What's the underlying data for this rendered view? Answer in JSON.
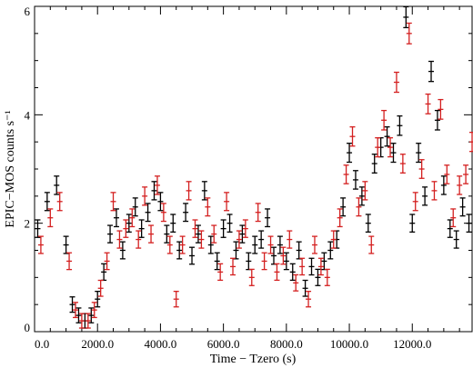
{
  "chart_data": {
    "type": "scatter",
    "title": "",
    "xlabel": "Time − Tzero (s)",
    "ylabel": "EPIC−MOS counts s⁻¹",
    "xlim": [
      0,
      13900
    ],
    "ylim": [
      0,
      6
    ],
    "grid": false,
    "legend": "none",
    "x_ticks": [
      0,
      2000,
      4000,
      6000,
      8000,
      10000,
      12000
    ],
    "x_tick_labels": [
      "0.0",
      "2000.0",
      "4000.0",
      "6000.0",
      "8000.0",
      "10000.0",
      "12000.0"
    ],
    "y_ticks": [
      0,
      2,
      4,
      6
    ],
    "y_tick_labels": [
      "0",
      "2",
      "4",
      "6"
    ],
    "series": [
      {
        "color": "#000000",
        "x": [
          100,
          400,
          700,
          1000,
          1200,
          1400,
          1600,
          1800,
          2000,
          2200,
          2400,
          2600,
          2800,
          3000,
          3200,
          3400,
          3600,
          3800,
          4000,
          4200,
          4400,
          4600,
          4800,
          5000,
          5200,
          5400,
          5600,
          5800,
          6000,
          6200,
          6400,
          6600,
          6800,
          7000,
          7200,
          7400,
          7600,
          7800,
          8000,
          8200,
          8400,
          8600,
          8800,
          9000,
          9200,
          9400,
          9600,
          9800,
          10000,
          10200,
          10400,
          10600,
          10800,
          11000,
          11200,
          11400,
          11600,
          11800,
          12000,
          12200,
          12400,
          12600,
          12800,
          13000,
          13200,
          13400,
          13600,
          13800
        ],
        "y": [
          1.9,
          2.4,
          2.7,
          1.6,
          0.5,
          0.3,
          0.2,
          0.3,
          0.6,
          1.1,
          1.8,
          2.1,
          1.5,
          2.0,
          2.3,
          1.9,
          2.2,
          2.6,
          2.4,
          1.8,
          2.0,
          1.5,
          2.2,
          1.4,
          1.8,
          2.6,
          1.6,
          1.3,
          1.9,
          2.0,
          1.5,
          1.8,
          1.3,
          1.6,
          1.7,
          2.1,
          1.4,
          1.6,
          1.3,
          1.1,
          1.5,
          0.8,
          1.2,
          1.0,
          1.3,
          1.5,
          1.7,
          2.3,
          3.3,
          2.8,
          2.5,
          2.0,
          3.1,
          3.4,
          3.6,
          3.3,
          3.8,
          5.8,
          2.0,
          3.3,
          2.5,
          4.8,
          3.9,
          2.7,
          1.9,
          1.7,
          2.3,
          2.0
        ]
      },
      {
        "color": "#d42020",
        "x": [
          200,
          500,
          800,
          1100,
          1300,
          1500,
          1700,
          1900,
          2100,
          2300,
          2500,
          2700,
          2900,
          3100,
          3300,
          3500,
          3700,
          3900,
          4100,
          4300,
          4500,
          4700,
          4900,
          5100,
          5300,
          5500,
          5700,
          5900,
          6100,
          6300,
          6500,
          6700,
          6900,
          7100,
          7300,
          7500,
          7700,
          7900,
          8100,
          8300,
          8500,
          8700,
          8900,
          9100,
          9300,
          9500,
          9700,
          9900,
          10100,
          10300,
          10500,
          10700,
          10900,
          11100,
          11300,
          11500,
          11700,
          11900,
          12100,
          12300,
          12500,
          12700,
          12900,
          13100,
          13300,
          13500,
          13700,
          13900
        ],
        "y": [
          1.6,
          2.1,
          2.4,
          1.3,
          0.4,
          0.2,
          0.2,
          0.4,
          0.8,
          1.3,
          2.4,
          1.7,
          1.9,
          2.1,
          1.7,
          2.5,
          1.8,
          2.7,
          2.2,
          1.6,
          0.6,
          1.6,
          2.6,
          1.9,
          1.7,
          2.3,
          1.8,
          1.1,
          2.4,
          1.2,
          1.7,
          1.9,
          1.0,
          2.2,
          1.3,
          1.6,
          1.1,
          1.4,
          1.7,
          0.9,
          1.2,
          0.6,
          1.6,
          1.2,
          1.0,
          1.7,
          2.1,
          2.9,
          3.6,
          2.3,
          2.6,
          1.6,
          3.4,
          3.9,
          3.4,
          4.6,
          3.1,
          5.5,
          2.4,
          3.0,
          4.2,
          2.6,
          4.1,
          2.9,
          2.1,
          2.7,
          2.9,
          3.5
        ]
      }
    ]
  }
}
